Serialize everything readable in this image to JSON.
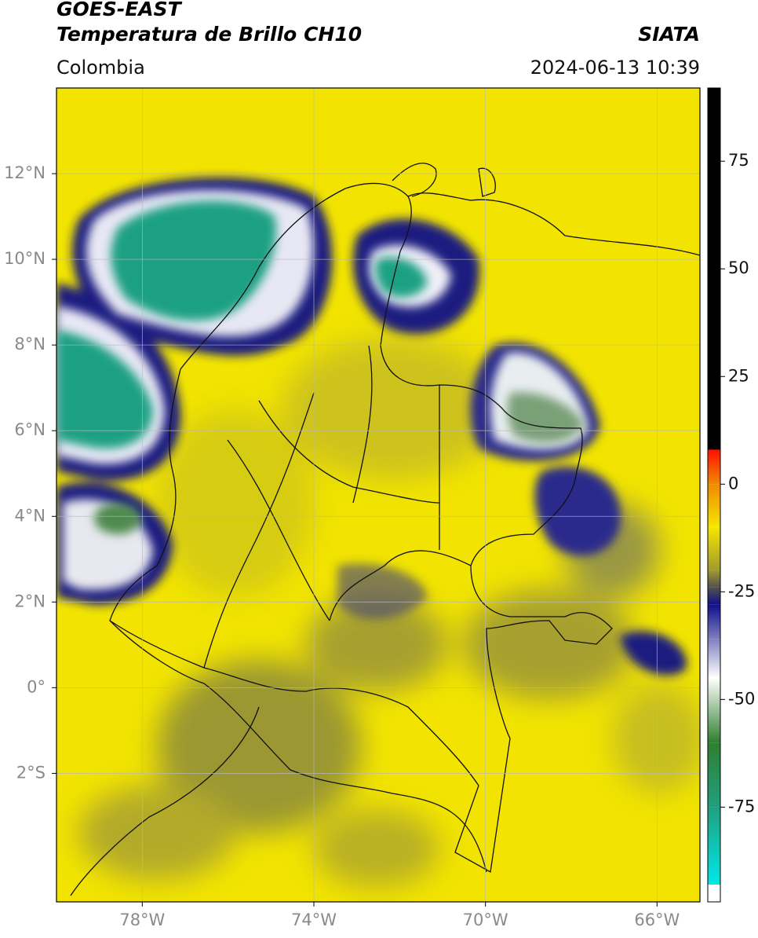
{
  "chart_data": {
    "type": "map",
    "title": "GOES-EAST",
    "subtitle": "Temperatura de Brillo CH10",
    "region": "Colombia",
    "source": "SIATA",
    "date": "2024-06-13 10:39",
    "xlim": [
      -80,
      -65
    ],
    "ylim": [
      -5,
      14
    ],
    "xticks": [
      {
        "value": -78,
        "label": "78°W"
      },
      {
        "value": -74,
        "label": "74°W"
      },
      {
        "value": -70,
        "label": "70°W"
      },
      {
        "value": -66,
        "label": "66°W"
      }
    ],
    "yticks": [
      {
        "value": 12,
        "label": "12°N"
      },
      {
        "value": 10,
        "label": "10°N"
      },
      {
        "value": 8,
        "label": "8°N"
      },
      {
        "value": 6,
        "label": "6°N"
      },
      {
        "value": 4,
        "label": "4°N"
      },
      {
        "value": 2,
        "label": "2°N"
      },
      {
        "value": 0,
        "label": "0°"
      },
      {
        "value": -2,
        "label": "2°S"
      }
    ],
    "grid": true,
    "clim": [
      -97,
      92
    ],
    "cticks": [
      75,
      50,
      25,
      0,
      -25,
      -50,
      -75
    ],
    "colormap": [
      {
        "value": 92,
        "color": "#000000"
      },
      {
        "value": 8,
        "color": "#000000"
      },
      {
        "value": 8,
        "color": "#ff1000"
      },
      {
        "value": 0,
        "color": "#f08a00"
      },
      {
        "value": -10,
        "color": "#f5e600"
      },
      {
        "value": -20,
        "color": "#a09a30"
      },
      {
        "value": -24,
        "color": "#505050"
      },
      {
        "value": -28,
        "color": "#10108a"
      },
      {
        "value": -36,
        "color": "#8080c0"
      },
      {
        "value": -45,
        "color": "#ffffff"
      },
      {
        "value": -60,
        "color": "#2f7f2f"
      },
      {
        "value": -75,
        "color": "#20a080"
      },
      {
        "value": -93,
        "color": "#00e8e8"
      },
      {
        "value": -93,
        "color": "#ffffff"
      },
      {
        "value": -97,
        "color": "#ffffff"
      }
    ]
  }
}
